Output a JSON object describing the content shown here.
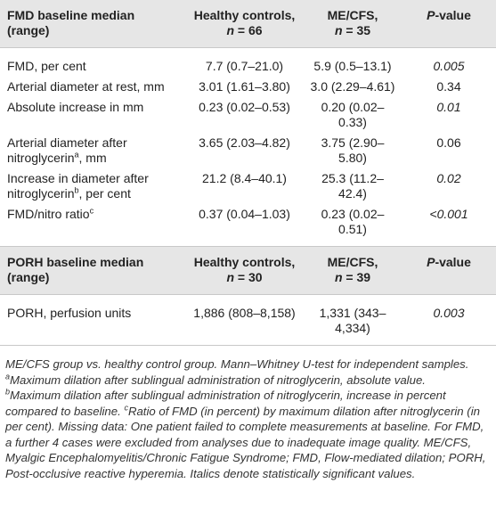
{
  "table1": {
    "header": [
      "FMD baseline median (range)",
      [
        "Healthy controls,",
        "n",
        "= 66"
      ],
      [
        "ME/CFS,",
        "n",
        "= 35"
      ],
      [
        "P",
        "-value"
      ]
    ],
    "rows": [
      [
        "FMD, per cent",
        "7.7 (0.7–21.0)",
        "5.9 (0.5–13.1)",
        "0.005"
      ],
      [
        "Arterial diameter at rest, mm",
        "3.01 (1.61–3.80)",
        "3.0 (2.29–4.61)",
        "0.34"
      ],
      [
        "Absolute increase in mm",
        "0.23 (0.02–0.53)",
        "0.20 (0.02–0.33)",
        "0.01"
      ],
      [
        [
          "Arterial diameter after nitroglycerin",
          "a",
          ", mm"
        ],
        "3.65 (2.03–4.82)",
        "3.75 (2.90–5.80)",
        "0.06"
      ],
      [
        [
          "Increase in diameter after nitroglycerin",
          "b",
          ", per cent"
        ],
        "21.2 (8.4–40.1)",
        "25.3 (11.2–42.4)",
        "0.02"
      ],
      [
        [
          "FMD/nitro ratio",
          "c"
        ],
        "0.37 (0.04–1.03)",
        "0.23 (0.02–0.51)",
        "<0.001"
      ]
    ]
  },
  "table2": {
    "header": [
      "PORH baseline median (range)",
      [
        "Healthy controls,",
        "n",
        "= 30"
      ],
      [
        "ME/CFS,",
        "n",
        "= 39"
      ],
      [
        "P",
        "-value"
      ]
    ],
    "rows": [
      [
        "PORH, perfusion units",
        "1,886 (808–8,158)",
        "1,331 (343–4,334)",
        "0.003"
      ]
    ]
  },
  "footnote": [
    "ME/CFS group vs. healthy control group. Mann–Whitney U-test for independent samples.",
    "a",
    "Maximum dilation after sublingual administration of nitroglycerin, absolute value.",
    "b",
    "Maximum dilation after sublingual administration of nitroglycerin, increase in percent compared to baseline.",
    "c",
    "Ratio of FMD (in percent) by maximum dilation after nitroglycerin (in per cent). Missing data: One patient failed to complete measurements at baseline. For FMD, a further 4 cases were excluded from analyses due to inadequate image quality. ME/CFS, Myalgic Encephalomyelitis/Chronic Fatigue Syndrome; FMD, Flow-mediated dilation; PORH, Post-occlusive reactive hyperemia. Italics denote statistically significant values."
  ]
}
